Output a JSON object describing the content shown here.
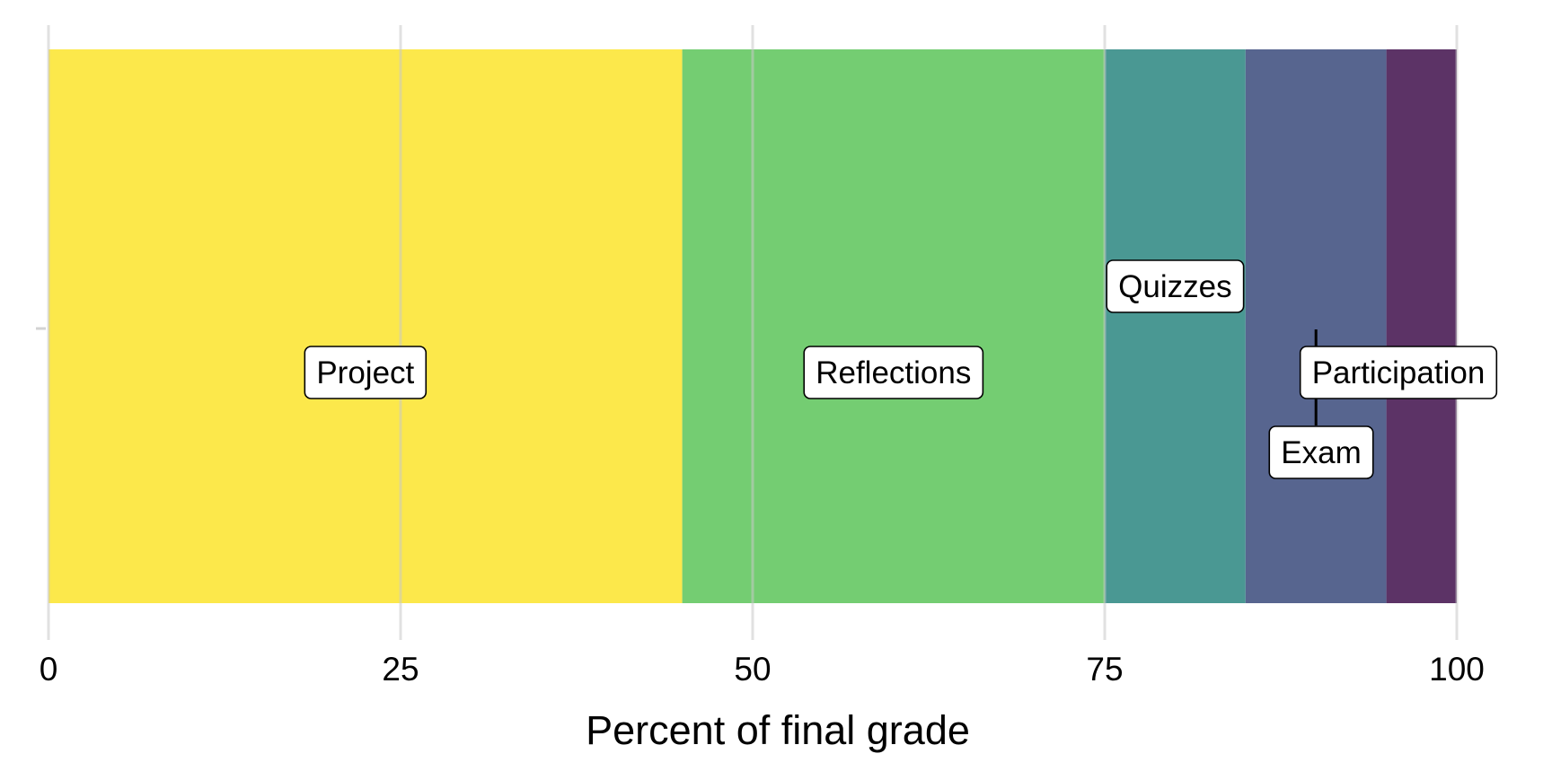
{
  "chart_data": {
    "type": "bar",
    "orientation": "horizontal",
    "stacked": true,
    "title": "",
    "xlabel": "Percent of final grade",
    "ylabel": "",
    "xlim": [
      0,
      100
    ],
    "xticks": [
      "0",
      "25",
      "50",
      "75",
      "100"
    ],
    "grid": true,
    "legend": "none",
    "series": [
      {
        "name": "Project",
        "value": 45,
        "color": "#FCE84B"
      },
      {
        "name": "Reflections",
        "value": 30,
        "color": "#74CD72"
      },
      {
        "name": "Quizzes",
        "value": 10,
        "color": "#4A9893"
      },
      {
        "name": "Exam",
        "value": 10,
        "color": "#57658F"
      },
      {
        "name": "Participation",
        "value": 5,
        "color": "#5C3366"
      }
    ]
  }
}
